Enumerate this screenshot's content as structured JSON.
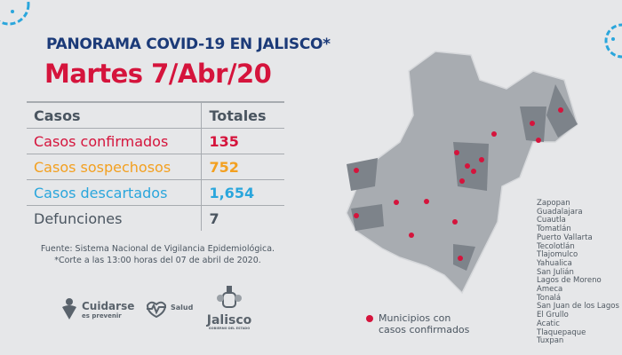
{
  "header": {
    "title_prefix": "PANORAMA ",
    "title_bold": "COVID-19",
    "title_suffix": " EN JALISCO*",
    "date": "Martes 7/Abr/20"
  },
  "table": {
    "headers": [
      "Casos",
      "Totales"
    ],
    "rows": [
      {
        "label": "Casos confirmados",
        "value": "135",
        "color": "#d5143c"
      },
      {
        "label": "Casos sospechosos",
        "value": "752",
        "color": "#f3a020"
      },
      {
        "label": "Casos descartados",
        "value": "1,654",
        "color": "#2aa6dc"
      },
      {
        "label": "Defunciones",
        "value": "7",
        "color": "#4a5560"
      }
    ]
  },
  "source": {
    "line1": "Fuente: Sistema Nacional de Vigilancia Epidemiológica.",
    "line2": "*Corte a las 13:00 horas del 07 de abril de 2020."
  },
  "municipalities": [
    "Zapopan",
    "Guadalajara",
    "Cuautla",
    "Tomatlán",
    "Puerto Vallarta",
    "Tecolotlán",
    "Tlajomulco",
    "Yahualica",
    "San Julián",
    "Lagos de Moreno",
    "Ameca",
    "Tonalá",
    "San Juan de los Lagos",
    "El Grullo",
    "Acatic",
    "Tlaquepaque",
    "Tuxpan"
  ],
  "legend": {
    "line1": "Municipios con",
    "line2": "casos confirmados"
  },
  "logos": {
    "cuidarse": "Cuidarse",
    "cuidarse_sub": "es prevenir",
    "salud": "Salud",
    "jalisco": "Jalisco",
    "jalisco_sub": "GOBIERNO DEL ESTADO"
  },
  "colors": {
    "background": "#e6e7e9",
    "navy": "#1b3a78",
    "confirmed": "#d5143c",
    "suspected": "#f3a020",
    "discarded": "#2aa6dc",
    "deaths": "#4a5560",
    "virus_icon": "#2aa6dc"
  }
}
